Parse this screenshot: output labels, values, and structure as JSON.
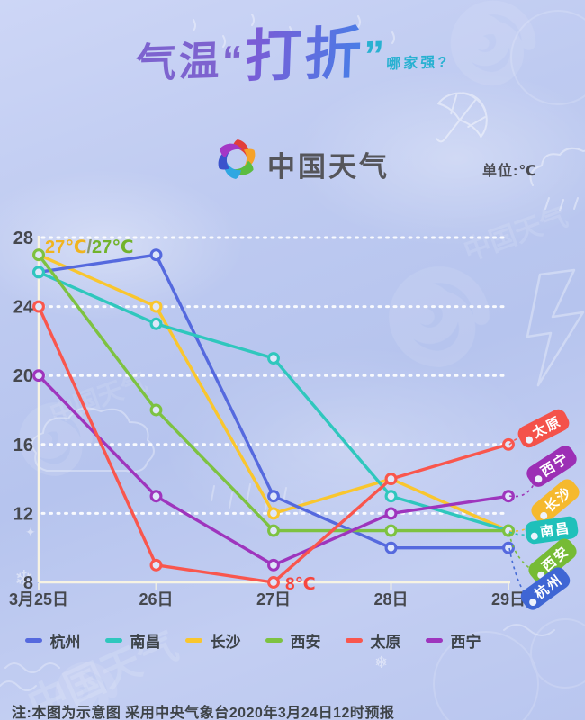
{
  "title": {
    "prefix": "气温",
    "open_quote": "“",
    "highlight": "打折",
    "close_quote": "”",
    "suffix": "哪家强?"
  },
  "brand": {
    "name": "中国天气"
  },
  "unit_label": "单位:℃",
  "chart_data": {
    "type": "line",
    "categories": [
      "3月25日",
      "26日",
      "27日",
      "28日",
      "29日"
    ],
    "series": [
      {
        "name": "杭州",
        "color": "#5569de",
        "tag_color": "#3f66d4",
        "values": [
          26,
          27,
          13,
          10,
          10
        ]
      },
      {
        "name": "南昌",
        "color": "#2fc7bd",
        "tag_color": "#1fc0ba",
        "values": [
          26,
          23,
          21,
          13,
          11
        ]
      },
      {
        "name": "长沙",
        "color": "#f9c62e",
        "tag_color": "#f5b92e",
        "values": [
          27,
          24,
          12,
          14,
          11
        ]
      },
      {
        "name": "西安",
        "color": "#7dc241",
        "tag_color": "#76bb35",
        "values": [
          27,
          18,
          11,
          11,
          11
        ]
      },
      {
        "name": "太原",
        "color": "#f9564d",
        "tag_color": "#f4524a",
        "values": [
          24,
          9,
          8,
          14,
          16
        ]
      },
      {
        "name": "西宁",
        "color": "#9e35bd",
        "tag_color": "#9c2fb5",
        "values": [
          20,
          13,
          9,
          12,
          13
        ]
      }
    ],
    "ylim": [
      8,
      28
    ],
    "yticks": [
      28,
      24,
      20,
      16,
      12,
      8
    ],
    "grid": "horizontal-dotted-white",
    "legend_position": "bottom",
    "annotations": [
      {
        "id": "first-day-high",
        "parts": [
          {
            "text": "27℃",
            "color": "#f0b41e"
          },
          {
            "text": "/",
            "color": "#87986f"
          },
          {
            "text": "27℃",
            "color": "#72b32c"
          }
        ]
      },
      {
        "id": "lowest-point",
        "parts": [
          {
            "text": "8℃",
            "color": "#f6463e"
          }
        ]
      }
    ],
    "end_tag_order": [
      "太原",
      "西宁",
      "长沙",
      "南昌",
      "西安",
      "杭州"
    ]
  },
  "footer_note": "注:本图为示意图 采用中央气象台2020年3月24日12时预报"
}
